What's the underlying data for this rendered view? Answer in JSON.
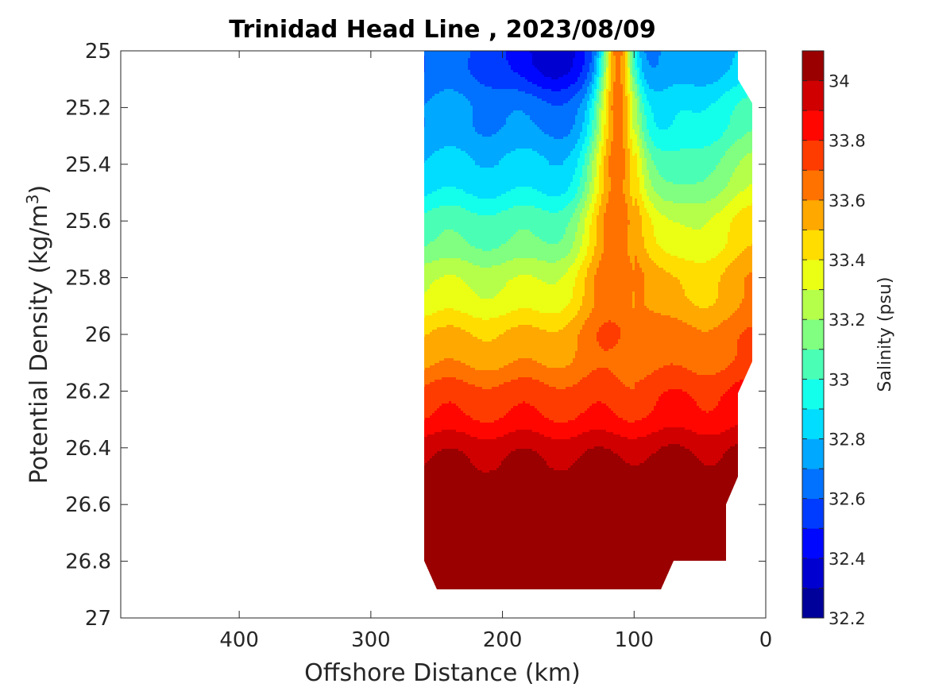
{
  "chart_data": {
    "type": "contour",
    "title": "Trinidad Head Line , 2023/08/09",
    "xlabel": "Offshore Distance (km)",
    "ylabel": "Potential Density (kg/m^3)",
    "xlim": [
      490,
      0
    ],
    "ylim": [
      25,
      27
    ],
    "y_reversed": true,
    "x_reversed": true,
    "xticks": [
      400,
      300,
      200,
      100,
      0
    ],
    "yticks": [
      25,
      25.2,
      25.4,
      25.6,
      25.8,
      26,
      26.2,
      26.4,
      26.6,
      26.8,
      27
    ],
    "ytick_labels": [
      "25",
      "25.2",
      "25.4",
      "25.6",
      "25.8",
      "26",
      "26.2",
      "26.4",
      "26.6",
      "26.8",
      "27"
    ],
    "colorbar": {
      "label": "Salinity (psu)",
      "limits": [
        32.2,
        34.1
      ],
      "ticks": [
        32.2,
        32.4,
        32.6,
        32.8,
        33,
        33.2,
        33.4,
        33.6,
        33.8,
        34
      ],
      "tick_labels": [
        "32.2",
        "32.4",
        "32.6",
        "32.8",
        "33",
        "33.2",
        "33.4",
        "33.6",
        "33.8",
        "34"
      ],
      "colormap": "jet",
      "levels": 19
    },
    "data_extent": {
      "x_range_km": [
        260,
        10
      ],
      "density_range": [
        25,
        26.9
      ]
    },
    "features": [
      {
        "description": "fresh core",
        "x_km": 165,
        "density": 25.05,
        "salinity": 32.35
      },
      {
        "description": "saline tongue",
        "x_km": 110,
        "density": 25.5,
        "salinity": 33.55
      },
      {
        "description": "bottom maximum",
        "x_km": 105,
        "density": 26.85,
        "salinity": 34.05
      }
    ]
  }
}
